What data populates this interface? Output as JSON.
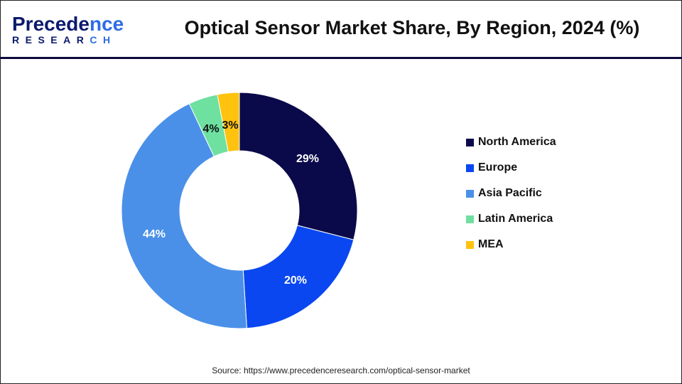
{
  "logo": {
    "text_main": "Precedence",
    "text_sub": "RESEARCH"
  },
  "title": "Optical Sensor Market Share, By Region, 2024 (%)",
  "source": "Source: https://www.precedenceresearch.com/optical-sensor-market",
  "chart_data": {
    "type": "pie",
    "variant": "donut",
    "title": "Optical Sensor Market Share, By Region, 2024 (%)",
    "categories": [
      "North America",
      "Europe",
      "Asia Pacific",
      "Latin America",
      "MEA"
    ],
    "values": [
      29,
      20,
      44,
      4,
      3
    ],
    "labels": [
      "29%",
      "20%",
      "44%",
      "4%",
      "3%"
    ],
    "colors": [
      "#0a0a4a",
      "#0a47f0",
      "#4a90e8",
      "#6ee0a0",
      "#ffc20e"
    ],
    "label_colors": [
      "#ffffff",
      "#ffffff",
      "#ffffff",
      "#111111",
      "#111111"
    ],
    "start": "top",
    "direction": "clockwise",
    "legend_position": "right"
  }
}
